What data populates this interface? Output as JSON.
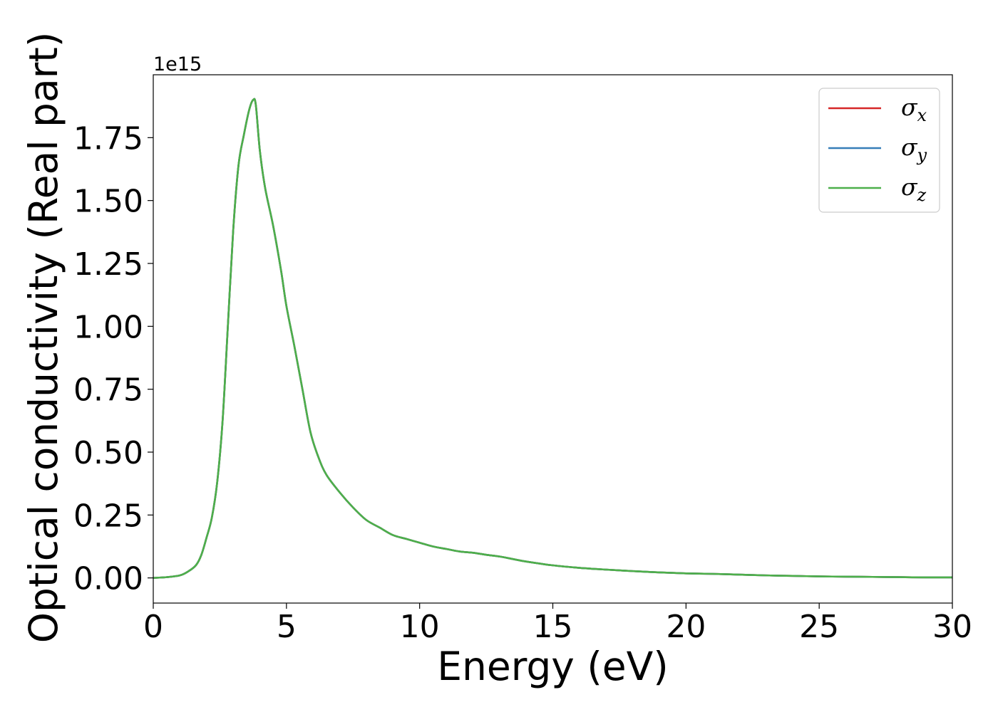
{
  "chart_data": {
    "type": "line",
    "xlabel": "Energy (eV)",
    "ylabel": "Optical conductivity (Real part)",
    "y_offset_label": "1e15",
    "y_scale_factor": 1000000000000000.0,
    "xlim": [
      0,
      30
    ],
    "ylim": [
      -0.1,
      2.0
    ],
    "x_ticks": [
      0,
      5,
      10,
      15,
      20,
      25,
      30
    ],
    "x_tick_labels": [
      "0",
      "5",
      "10",
      "15",
      "20",
      "25",
      "30"
    ],
    "y_ticks": [
      0.0,
      0.25,
      0.5,
      0.75,
      1.0,
      1.25,
      1.5,
      1.75
    ],
    "y_tick_labels": [
      "0.00",
      "0.25",
      "0.50",
      "0.75",
      "1.00",
      "1.25",
      "1.50",
      "1.75"
    ],
    "grid": false,
    "legend_position": "upper right",
    "x": [
      0,
      0.5,
      1.0,
      1.3,
      1.6,
      1.8,
      2.0,
      2.2,
      2.4,
      2.6,
      2.8,
      3.0,
      3.2,
      3.4,
      3.6,
      3.75,
      3.85,
      4.0,
      4.2,
      4.5,
      4.8,
      5.0,
      5.3,
      5.6,
      5.9,
      6.2,
      6.5,
      7.0,
      7.5,
      8.0,
      8.5,
      9.0,
      9.5,
      10.0,
      10.5,
      11.0,
      11.5,
      12.0,
      12.5,
      13.0,
      13.5,
      14.0,
      15.0,
      16.0,
      17.0,
      18.0,
      19.0,
      20.0,
      21.0,
      22.0,
      23.0,
      24.0,
      25.0,
      26.0,
      27.0,
      28.0,
      29.0,
      30.0
    ],
    "series": [
      {
        "name": "σx",
        "label_base": "σ",
        "label_sub": "x",
        "color": "#d62728",
        "values": [
          0.0,
          0.003,
          0.01,
          0.025,
          0.05,
          0.09,
          0.16,
          0.24,
          0.38,
          0.62,
          1.0,
          1.38,
          1.64,
          1.76,
          1.86,
          1.9,
          1.88,
          1.7,
          1.55,
          1.4,
          1.22,
          1.08,
          0.92,
          0.75,
          0.58,
          0.48,
          0.41,
          0.34,
          0.28,
          0.23,
          0.2,
          0.17,
          0.155,
          0.14,
          0.125,
          0.115,
          0.105,
          0.1,
          0.092,
          0.085,
          0.075,
          0.065,
          0.05,
          0.04,
          0.033,
          0.027,
          0.022,
          0.018,
          0.016,
          0.013,
          0.01,
          0.008,
          0.006,
          0.005,
          0.004,
          0.003,
          0.002,
          0.002
        ]
      },
      {
        "name": "σy",
        "label_base": "σ",
        "label_sub": "y",
        "color": "#377eb8",
        "values": [
          0.0,
          0.003,
          0.01,
          0.025,
          0.05,
          0.09,
          0.16,
          0.24,
          0.38,
          0.62,
          1.0,
          1.38,
          1.64,
          1.76,
          1.86,
          1.9,
          1.88,
          1.7,
          1.55,
          1.4,
          1.22,
          1.08,
          0.92,
          0.75,
          0.58,
          0.48,
          0.41,
          0.34,
          0.28,
          0.23,
          0.2,
          0.17,
          0.155,
          0.14,
          0.125,
          0.115,
          0.105,
          0.1,
          0.092,
          0.085,
          0.075,
          0.065,
          0.05,
          0.04,
          0.033,
          0.027,
          0.022,
          0.018,
          0.016,
          0.013,
          0.01,
          0.008,
          0.006,
          0.005,
          0.004,
          0.003,
          0.002,
          0.002
        ]
      },
      {
        "name": "σz",
        "label_base": "σ",
        "label_sub": "z",
        "color": "#4daf4a",
        "values": [
          0.0,
          0.003,
          0.01,
          0.025,
          0.05,
          0.09,
          0.16,
          0.24,
          0.38,
          0.62,
          1.0,
          1.38,
          1.64,
          1.76,
          1.86,
          1.9,
          1.88,
          1.7,
          1.55,
          1.4,
          1.22,
          1.08,
          0.92,
          0.75,
          0.58,
          0.48,
          0.41,
          0.34,
          0.28,
          0.23,
          0.2,
          0.17,
          0.155,
          0.14,
          0.125,
          0.115,
          0.105,
          0.1,
          0.092,
          0.085,
          0.075,
          0.065,
          0.05,
          0.04,
          0.033,
          0.027,
          0.022,
          0.018,
          0.016,
          0.013,
          0.01,
          0.008,
          0.006,
          0.005,
          0.004,
          0.003,
          0.002,
          0.002
        ]
      }
    ]
  }
}
